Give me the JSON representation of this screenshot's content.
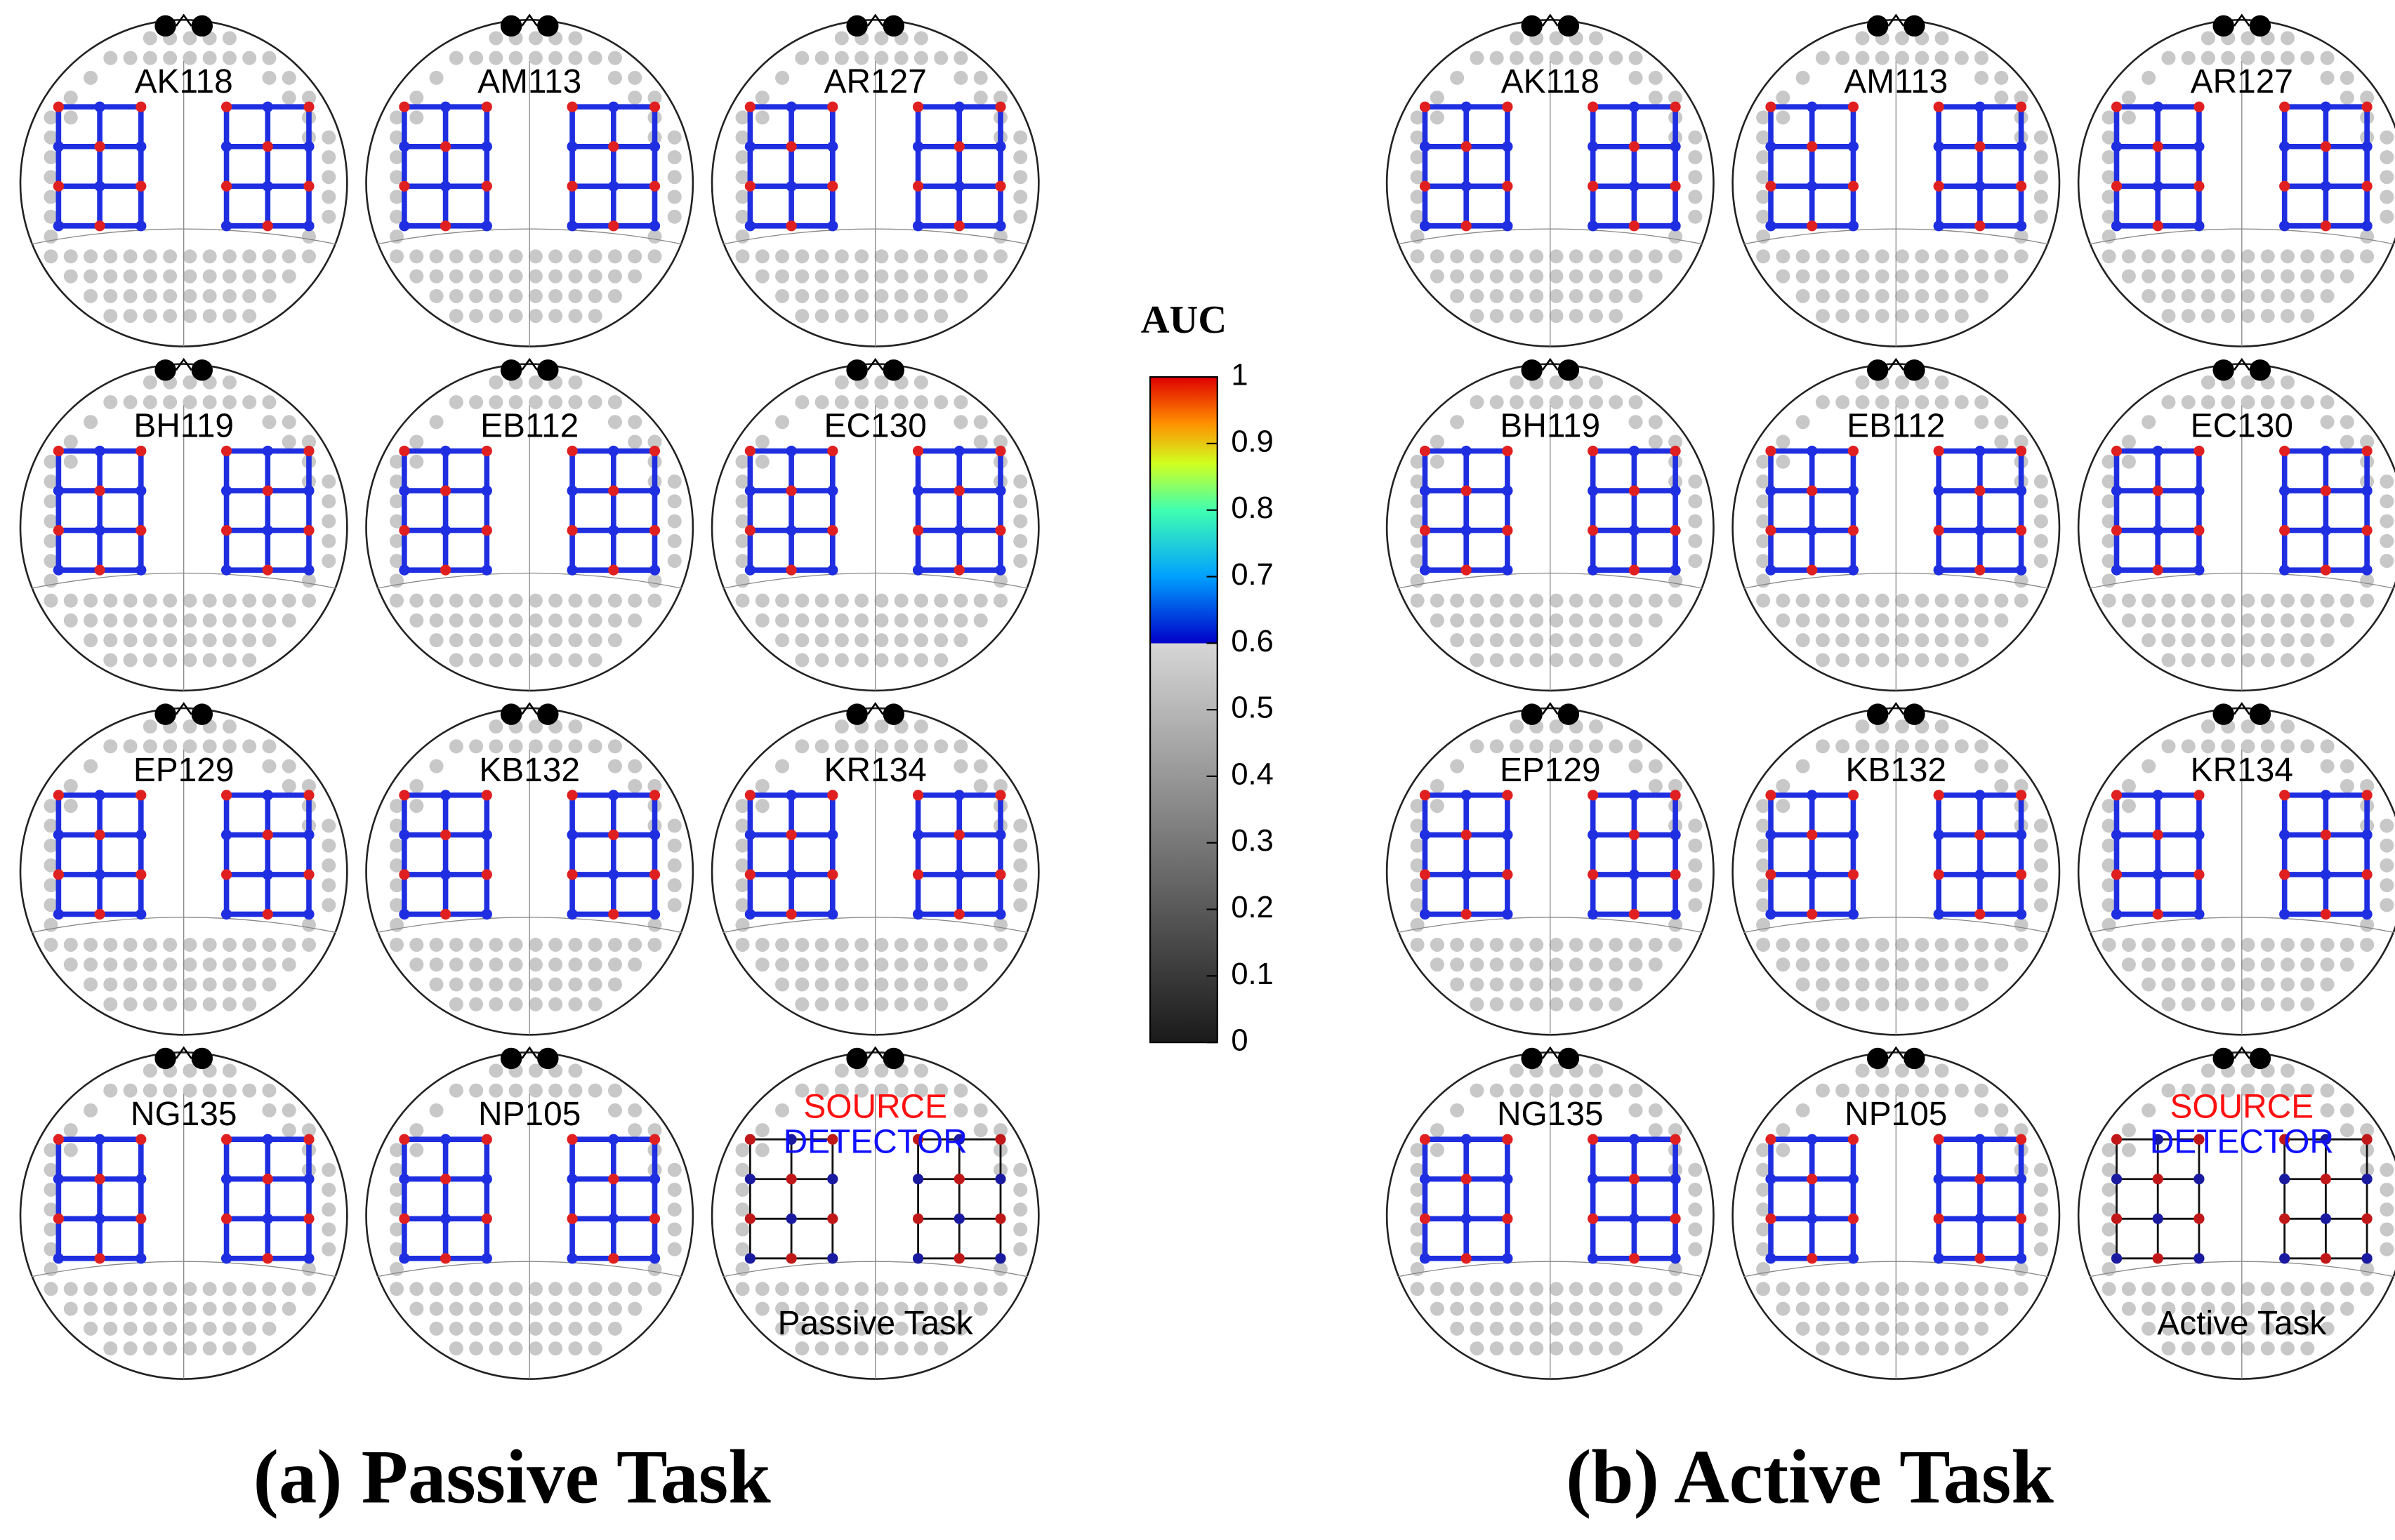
{
  "colorbar": {
    "title": "AUC",
    "lim": [
      0,
      1
    ],
    "ticks": [
      0,
      0.1,
      0.2,
      0.3,
      0.4,
      0.5,
      0.6,
      0.7,
      0.8,
      0.9,
      1
    ]
  },
  "panels": [
    {
      "caption": "(a) Passive Task",
      "subjects": [
        "AK118",
        "AM113",
        "AR127",
        "BH119",
        "EB112",
        "EC130",
        "EP129",
        "KB132",
        "KR134",
        "NG135",
        "NP105"
      ],
      "legend": {
        "source": "SOURCE",
        "detector": "DETECTOR",
        "task": "Passive Task"
      }
    },
    {
      "caption": "(b) Active Task",
      "subjects": [
        "AK118",
        "AM113",
        "AR127",
        "BH119",
        "EB112",
        "EC130",
        "EP129",
        "KB132",
        "KR134",
        "NG135",
        "NP105"
      ],
      "legend": {
        "source": "SOURCE",
        "detector": "DETECTOR",
        "task": "Active Task"
      }
    }
  ]
}
